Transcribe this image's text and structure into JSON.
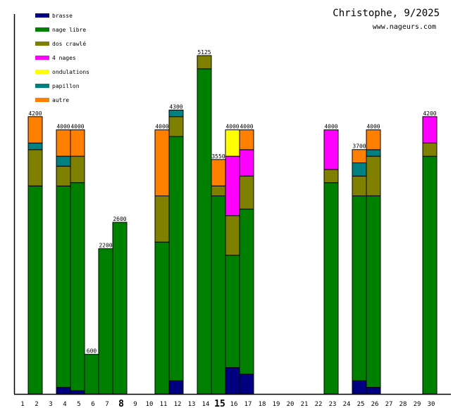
{
  "chart_data": {
    "type": "bar",
    "stacked": true,
    "title": "Christophe, 9/2025",
    "subtitle": "www.nageurs.com",
    "xlabel": "",
    "ylabel": "",
    "ylim": [
      0,
      5125
    ],
    "grid": false,
    "legend_position": "top-left",
    "categories": [
      "1",
      "2",
      "3",
      "4",
      "5",
      "6",
      "7",
      "8",
      "9",
      "10",
      "11",
      "12",
      "13",
      "14",
      "15",
      "16",
      "17",
      "18",
      "19",
      "20",
      "21",
      "22",
      "23",
      "24",
      "25",
      "26",
      "27",
      "28",
      "29",
      "30"
    ],
    "bold_categories": [
      "8",
      "15"
    ],
    "stack_order": [
      "brasse",
      "nage libre",
      "dos crawlé",
      "4 nages",
      "ondulations",
      "papillon",
      "autre"
    ],
    "series": [
      {
        "name": "brasse",
        "color": "#000080",
        "values": [
          0,
          0,
          0,
          100,
          50,
          0,
          0,
          0,
          0,
          0,
          0,
          200,
          0,
          0,
          0,
          400,
          300,
          0,
          0,
          0,
          0,
          0,
          0,
          0,
          200,
          100,
          0,
          0,
          0,
          0
        ]
      },
      {
        "name": "nage libre",
        "color": "#008000",
        "values": [
          0,
          3150,
          0,
          3050,
          3150,
          600,
          2200,
          2600,
          0,
          0,
          2300,
          3700,
          0,
          4925,
          3000,
          1700,
          2500,
          0,
          0,
          0,
          0,
          0,
          3200,
          0,
          2800,
          2900,
          0,
          0,
          0,
          3600
        ]
      },
      {
        "name": "dos crawlé",
        "color": "#808000",
        "values": [
          0,
          550,
          0,
          300,
          400,
          0,
          0,
          0,
          0,
          0,
          700,
          300,
          0,
          200,
          150,
          600,
          500,
          0,
          0,
          0,
          0,
          0,
          200,
          0,
          300,
          600,
          0,
          0,
          0,
          200
        ]
      },
      {
        "name": "4 nages",
        "color": "#ff00ff",
        "values": [
          0,
          0,
          0,
          0,
          0,
          0,
          0,
          0,
          0,
          0,
          0,
          0,
          0,
          0,
          0,
          900,
          400,
          0,
          0,
          0,
          0,
          0,
          600,
          0,
          0,
          0,
          0,
          0,
          0,
          400
        ]
      },
      {
        "name": "ondulations",
        "color": "#ffff00",
        "values": [
          0,
          0,
          0,
          0,
          0,
          0,
          0,
          0,
          0,
          0,
          0,
          0,
          0,
          0,
          0,
          400,
          0,
          0,
          0,
          0,
          0,
          0,
          0,
          0,
          0,
          0,
          0,
          0,
          0,
          0
        ]
      },
      {
        "name": "papillon",
        "color": "#008080",
        "values": [
          0,
          100,
          0,
          150,
          0,
          0,
          0,
          0,
          0,
          0,
          0,
          100,
          0,
          0,
          0,
          0,
          0,
          0,
          0,
          0,
          0,
          0,
          0,
          0,
          200,
          100,
          0,
          0,
          0,
          0
        ]
      },
      {
        "name": "autre",
        "color": "#ff8000",
        "values": [
          0,
          400,
          0,
          400,
          400,
          0,
          0,
          0,
          0,
          0,
          1000,
          0,
          0,
          0,
          400,
          0,
          300,
          0,
          0,
          0,
          0,
          0,
          0,
          0,
          200,
          300,
          0,
          0,
          0,
          0
        ]
      }
    ],
    "totals": [
      0,
      4200,
      0,
      4000,
      4000,
      600,
      2200,
      2600,
      0,
      0,
      4000,
      4300,
      0,
      5125,
      3550,
      4000,
      4000,
      0,
      0,
      0,
      0,
      0,
      4000,
      0,
      3700,
      4000,
      0,
      0,
      0,
      4200
    ],
    "total_labels": [
      "",
      "4200",
      "",
      "4000",
      "4000",
      "600",
      "2200",
      "2600",
      "",
      "",
      "4000",
      "4300",
      "",
      "5125",
      "3550",
      "4000",
      "4000",
      "",
      "",
      "",
      "",
      "",
      "4000",
      "",
      "3700",
      "4000",
      "",
      "",
      "",
      "4200"
    ]
  }
}
